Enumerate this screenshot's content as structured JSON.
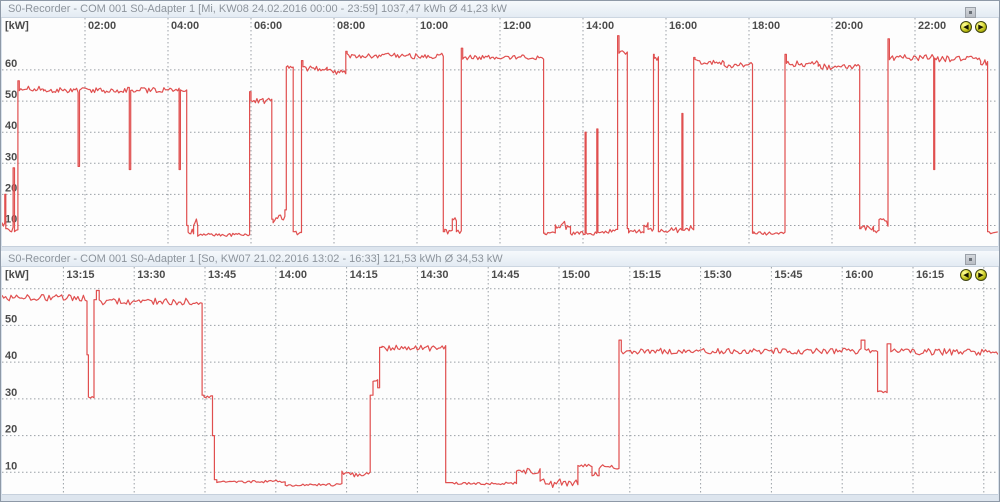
{
  "panels": [
    {
      "title": "S0-Recorder - COM 001 S0-Adapter 1 [Mi, KW08 24.02.2016 00:00 - 23:59] 1037,47 kWh Ø 41,23 kW",
      "unit_label": "[kW]",
      "nav": {
        "prev": "◀",
        "next": "▶"
      }
    },
    {
      "title": "S0-Recorder - COM 001 S0-Adapter 1 [So, KW07 21.02.2016 13:02 - 16:33] 121,53 kWh Ø 34,53 kW",
      "unit_label": "[kW]",
      "nav": {
        "prev": "◀",
        "next": "▶"
      }
    }
  ],
  "chart_data": [
    {
      "type": "line",
      "title": "S0-Recorder - COM 001 S0-Adapter 1 [Mi, KW08 24.02.2016 00:00 - 23:59] 1037,47 kWh Ø 41,23 kW",
      "ylabel": "[kW]",
      "color": "#e04f4f",
      "grid": true,
      "x_min": 0,
      "x_max": 1440,
      "y_top": 76.7,
      "y_bottom": 3.4,
      "sample_step": 2.2,
      "noise_seed": 7,
      "x_ticks": [
        {
          "min": 120,
          "label": "02:00"
        },
        {
          "min": 240,
          "label": "04:00"
        },
        {
          "min": 360,
          "label": "06:00"
        },
        {
          "min": 480,
          "label": "08:00"
        },
        {
          "min": 600,
          "label": "10:00"
        },
        {
          "min": 720,
          "label": "12:00"
        },
        {
          "min": 840,
          "label": "14:00"
        },
        {
          "min": 960,
          "label": "16:00"
        },
        {
          "min": 1080,
          "label": "18:00"
        },
        {
          "min": 1200,
          "label": "20:00"
        },
        {
          "min": 1320,
          "label": "22:00"
        }
      ],
      "y_gridlines": [
        60,
        50,
        40,
        30,
        20,
        10
      ],
      "y_ticks": [
        60,
        50,
        40,
        30,
        20,
        10
      ],
      "segments": [
        [
          0,
          4,
          10,
          1.5
        ],
        [
          4,
          5.5,
          20,
          0
        ],
        [
          5.5,
          16,
          8.5,
          1
        ],
        [
          16,
          18,
          28.5,
          0
        ],
        [
          18,
          23,
          9,
          1
        ],
        [
          23,
          25,
          56.5,
          0
        ],
        [
          25,
          60,
          54,
          0.8
        ],
        [
          60,
          110,
          53.5,
          0.8
        ],
        [
          110,
          112,
          29,
          0
        ],
        [
          112,
          184,
          53.5,
          0.9
        ],
        [
          184,
          186,
          28,
          0
        ],
        [
          186,
          256,
          53.5,
          0.9
        ],
        [
          256,
          258,
          28,
          0
        ],
        [
          258,
          267,
          53,
          0.8
        ],
        [
          267,
          269,
          10,
          0
        ],
        [
          269,
          277,
          8,
          0.8
        ],
        [
          277,
          283,
          11,
          1.2
        ],
        [
          283,
          358,
          7,
          0.5
        ],
        [
          358,
          360,
          53,
          0
        ],
        [
          360,
          390,
          50,
          1
        ],
        [
          390,
          392,
          12,
          0
        ],
        [
          392,
          409,
          12,
          1.4
        ],
        [
          409,
          411,
          15,
          0
        ],
        [
          411,
          421,
          61,
          1
        ],
        [
          421,
          423,
          8,
          0
        ],
        [
          423,
          433,
          7.5,
          0.8
        ],
        [
          433,
          435,
          63,
          0
        ],
        [
          435,
          470,
          60.5,
          0.9
        ],
        [
          470,
          497,
          59.5,
          0.9
        ],
        [
          497,
          499,
          66,
          0
        ],
        [
          499,
          638,
          64.5,
          0.9
        ],
        [
          638,
          640,
          8,
          0
        ],
        [
          640,
          651,
          8,
          0.8
        ],
        [
          651,
          657,
          11.5,
          1
        ],
        [
          657,
          664,
          8,
          0.8
        ],
        [
          664,
          666,
          67,
          0
        ],
        [
          666,
          783,
          64,
          0.8
        ],
        [
          783,
          785,
          7.5,
          0
        ],
        [
          785,
          800,
          7.5,
          0.6
        ],
        [
          800,
          822,
          10,
          1.4
        ],
        [
          822,
          843,
          7.5,
          0.6
        ],
        [
          843,
          844.5,
          40,
          0
        ],
        [
          844.5,
          860,
          7.5,
          0.6
        ],
        [
          860,
          861.5,
          41,
          0
        ],
        [
          861.5,
          890,
          8,
          0.8
        ],
        [
          890,
          892,
          71,
          0
        ],
        [
          892,
          904,
          65.5,
          1
        ],
        [
          904,
          906,
          9,
          0
        ],
        [
          906,
          928,
          8,
          0.7
        ],
        [
          928,
          934,
          10.5,
          1
        ],
        [
          934,
          942,
          8.5,
          0.7
        ],
        [
          942,
          943,
          65,
          0
        ],
        [
          943,
          949,
          63.5,
          1
        ],
        [
          949,
          951,
          8,
          0
        ],
        [
          951,
          983,
          8.5,
          0.9
        ],
        [
          983,
          984.5,
          46,
          0
        ],
        [
          984.5,
          1000,
          9,
          1
        ],
        [
          1000,
          1002,
          64,
          0
        ],
        [
          1002,
          1044,
          62.5,
          0.9
        ],
        [
          1044,
          1085,
          61.5,
          0.9
        ],
        [
          1085,
          1087,
          7.5,
          0
        ],
        [
          1087,
          1132,
          7.5,
          0.6
        ],
        [
          1132,
          1134,
          65,
          0
        ],
        [
          1134,
          1180,
          62,
          1
        ],
        [
          1180,
          1240,
          61,
          0.9
        ],
        [
          1240,
          1242,
          9,
          0
        ],
        [
          1242,
          1260,
          9.5,
          1
        ],
        [
          1260,
          1268,
          8,
          0.6
        ],
        [
          1268,
          1281,
          11,
          1.3
        ],
        [
          1281,
          1283,
          70,
          0
        ],
        [
          1283,
          1347,
          64,
          1
        ],
        [
          1347,
          1348.5,
          28,
          0
        ],
        [
          1348.5,
          1415,
          63.5,
          1
        ],
        [
          1415,
          1425,
          62.5,
          1
        ],
        [
          1425,
          1427,
          8,
          0
        ],
        [
          1427,
          1439,
          7.5,
          0.5
        ]
      ]
    },
    {
      "type": "line",
      "title": "S0-Recorder - COM 001 S0-Adapter 1 [So, KW07 21.02.2016 13:02 - 16:33] 121,53 kWh Ø 34,53 kW",
      "ylabel": "[kW]",
      "color": "#e04f4f",
      "grid": true,
      "x_min": 782,
      "x_max": 993,
      "y_top": 65.9,
      "y_bottom": 4.1,
      "sample_step": 0.38,
      "noise_seed": 3,
      "x_ticks": [
        {
          "min": 795,
          "label": "13:15"
        },
        {
          "min": 810,
          "label": "13:30"
        },
        {
          "min": 825,
          "label": "13:45"
        },
        {
          "min": 840,
          "label": "14:00"
        },
        {
          "min": 855,
          "label": "14:15"
        },
        {
          "min": 870,
          "label": "14:30"
        },
        {
          "min": 885,
          "label": "14:45"
        },
        {
          "min": 900,
          "label": "15:00"
        },
        {
          "min": 915,
          "label": "15:15"
        },
        {
          "min": 930,
          "label": "15:30"
        },
        {
          "min": 945,
          "label": "15:45"
        },
        {
          "min": 960,
          "label": "16:00"
        },
        {
          "min": 975,
          "label": "16:15"
        },
        {
          "min": 990,
          "label": ""
        }
      ],
      "y_gridlines": [
        60,
        50,
        40,
        30,
        20,
        10
      ],
      "y_ticks": [
        50,
        40,
        30,
        20,
        10
      ],
      "segments": [
        [
          782,
          800,
          57.5,
          0.9
        ],
        [
          800,
          800.3,
          42,
          0
        ],
        [
          800.3,
          801.5,
          30.5,
          0.3
        ],
        [
          801.5,
          802,
          57,
          0
        ],
        [
          802,
          802.6,
          59.5,
          0
        ],
        [
          802.6,
          824.4,
          56.5,
          0.9
        ],
        [
          824.4,
          824.8,
          31,
          0
        ],
        [
          824.8,
          826.6,
          30.5,
          0.4
        ],
        [
          826.6,
          827,
          20,
          0
        ],
        [
          827,
          827.5,
          8,
          0
        ],
        [
          827.5,
          842,
          7.5,
          0.35
        ],
        [
          842,
          854,
          6.6,
          0.35
        ],
        [
          854,
          860,
          9.5,
          0.9
        ],
        [
          860,
          860.6,
          31,
          0
        ],
        [
          860.6,
          861.6,
          35,
          0.8
        ],
        [
          861.6,
          862,
          33,
          0
        ],
        [
          862,
          862.5,
          44,
          0
        ],
        [
          862.5,
          876,
          43.8,
          0.8
        ],
        [
          876,
          877.5,
          7.2,
          0
        ],
        [
          877.5,
          891,
          7,
          0.35
        ],
        [
          891,
          896,
          10.5,
          1
        ],
        [
          896,
          904,
          7,
          1.3
        ],
        [
          904,
          907,
          12,
          0.5
        ],
        [
          907,
          908.5,
          9.5,
          0.5
        ],
        [
          908.5,
          912.7,
          11.5,
          0.6
        ],
        [
          912.7,
          913.2,
          46,
          0
        ],
        [
          913.2,
          964,
          43,
          0.8
        ],
        [
          964,
          964.8,
          46,
          0
        ],
        [
          964.8,
          967.5,
          43,
          0.7
        ],
        [
          967.5,
          969.5,
          32,
          0.3
        ],
        [
          969.5,
          970.3,
          45,
          0
        ],
        [
          970.3,
          993,
          42.8,
          0.9
        ]
      ]
    }
  ]
}
